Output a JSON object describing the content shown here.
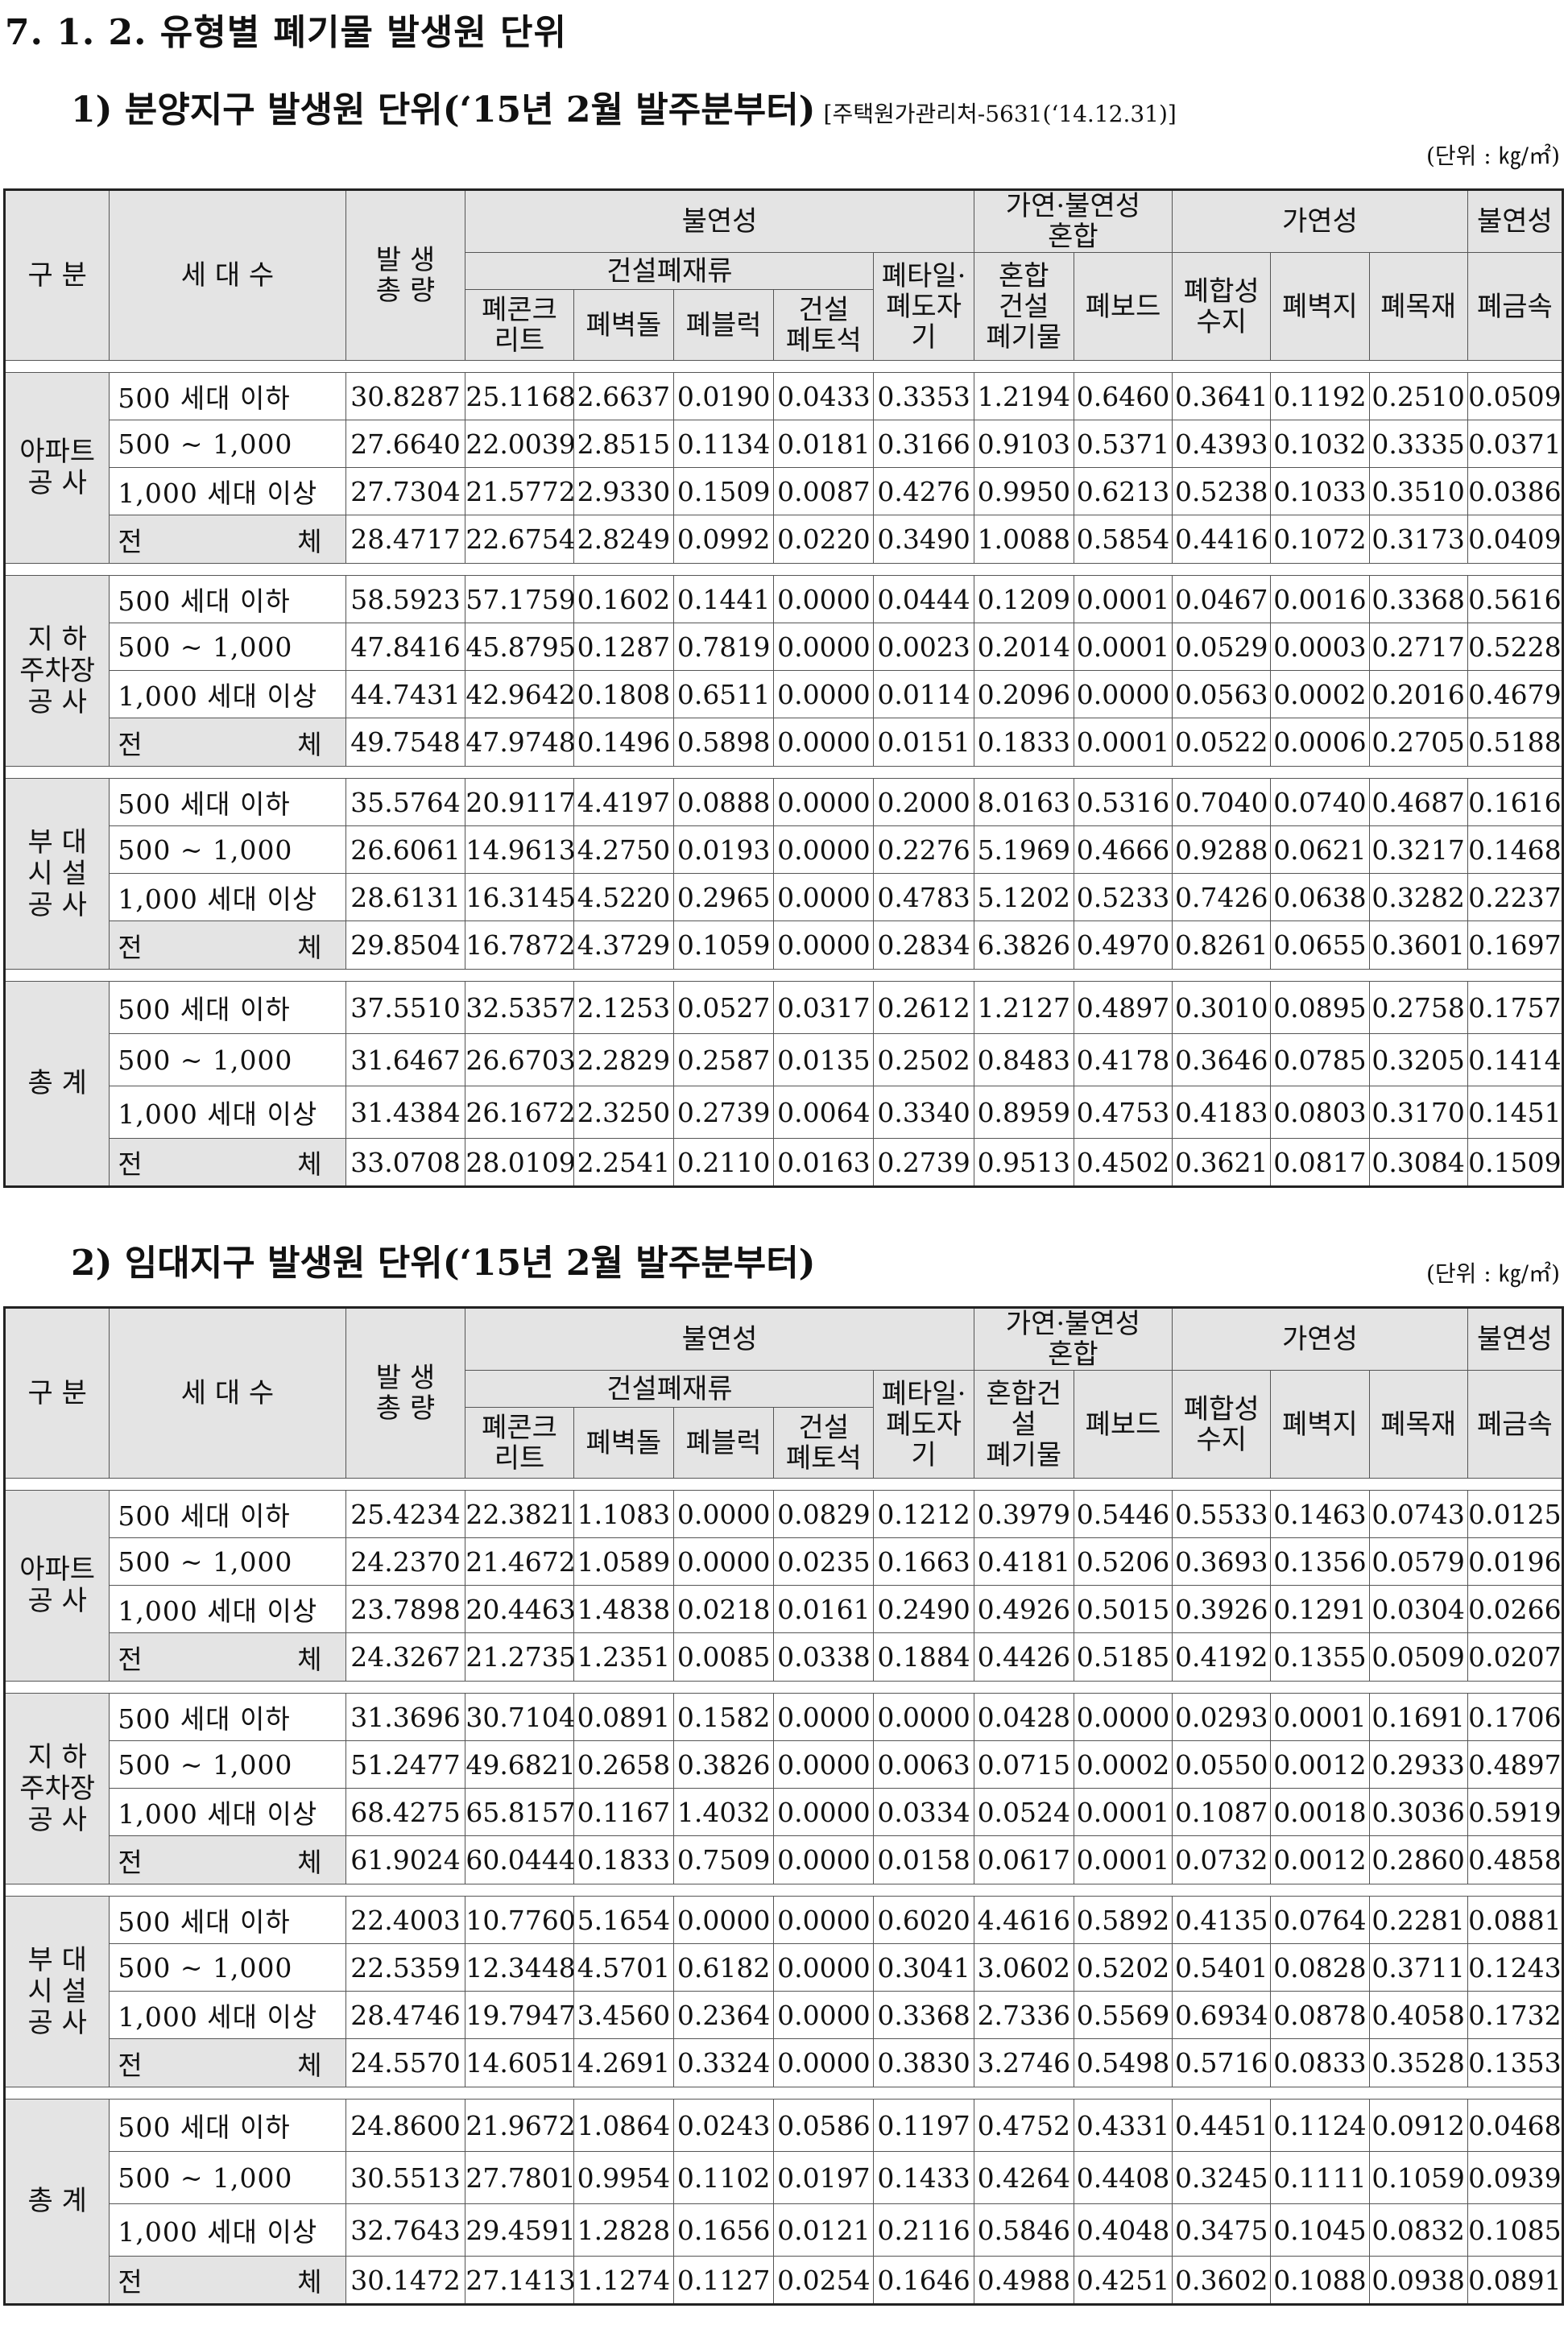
{
  "page_title": "7. 1. 2. 유형별 폐기물 발생원 단위",
  "headers": {
    "gubun": "구 분",
    "households": "세 대 수",
    "total": "발 생\n총 량",
    "nonflam": "불연성",
    "mixed": "가연·불연성\n혼합",
    "flam": "가연성",
    "nonflam2": "불연성",
    "constr": "건설폐재류",
    "tile": "폐타일·\n폐도자\n기",
    "concrete": "폐콘크\n리트",
    "brick": "폐벽돌",
    "block": "폐블럭",
    "stone": "건설\n폐토석",
    "board": "폐보드",
    "resin": "폐합성\n수지",
    "wallpaper": "폐벽지",
    "wood": "폐목재",
    "metal": "폐금속"
  },
  "sections": [
    {
      "title": "1) 분양지구 발생원 단위(‘15년 2월 발주분부터)",
      "ref": "[주택원가관리처-5631(‘14.12.31)]",
      "unit": "(단위 : ㎏/㎡)",
      "mixed_col_header": "혼합\n건설\n폐기물",
      "groups": [
        {
          "name": "아파트\n공 사",
          "rows": [
            {
              "hh": "500 세대 이하",
              "v": [
                "30.8287",
                "25.1168",
                "2.6637",
                "0.0190",
                "0.0433",
                "0.3353",
                "1.2194",
                "0.6460",
                "0.3641",
                "0.1192",
                "0.2510",
                "0.0509"
              ]
            },
            {
              "hh": "500 ~ 1,000",
              "v": [
                "27.6640",
                "22.0039",
                "2.8515",
                "0.1134",
                "0.0181",
                "0.3166",
                "0.9103",
                "0.5371",
                "0.4393",
                "0.1032",
                "0.3335",
                "0.0371"
              ]
            },
            {
              "hh": "1,000 세대 이상",
              "v": [
                "27.7304",
                "21.5772",
                "2.9330",
                "0.1509",
                "0.0087",
                "0.4276",
                "0.9950",
                "0.6213",
                "0.5238",
                "0.1033",
                "0.3510",
                "0.0386"
              ]
            },
            {
              "hh": "전 체",
              "total": true,
              "v": [
                "28.4717",
                "22.6754",
                "2.8249",
                "0.0992",
                "0.0220",
                "0.3490",
                "1.0088",
                "0.5854",
                "0.4416",
                "0.1072",
                "0.3173",
                "0.0409"
              ]
            }
          ]
        },
        {
          "name": "지 하\n주차장\n공 사",
          "rows": [
            {
              "hh": "500 세대 이하",
              "v": [
                "58.5923",
                "57.1759",
                "0.1602",
                "0.1441",
                "0.0000",
                "0.0444",
                "0.1209",
                "0.0001",
                "0.0467",
                "0.0016",
                "0.3368",
                "0.5616"
              ]
            },
            {
              "hh": "500 ~ 1,000",
              "v": [
                "47.8416",
                "45.8795",
                "0.1287",
                "0.7819",
                "0.0000",
                "0.0023",
                "0.2014",
                "0.0001",
                "0.0529",
                "0.0003",
                "0.2717",
                "0.5228"
              ]
            },
            {
              "hh": "1,000 세대 이상",
              "v": [
                "44.7431",
                "42.9642",
                "0.1808",
                "0.6511",
                "0.0000",
                "0.0114",
                "0.2096",
                "0.0000",
                "0.0563",
                "0.0002",
                "0.2016",
                "0.4679"
              ]
            },
            {
              "hh": "전 체",
              "total": true,
              "v": [
                "49.7548",
                "47.9748",
                "0.1496",
                "0.5898",
                "0.0000",
                "0.0151",
                "0.1833",
                "0.0001",
                "0.0522",
                "0.0006",
                "0.2705",
                "0.5188"
              ]
            }
          ]
        },
        {
          "name": "부 대\n시 설\n공 사",
          "rows": [
            {
              "hh": "500 세대 이하",
              "v": [
                "35.5764",
                "20.9117",
                "4.4197",
                "0.0888",
                "0.0000",
                "0.2000",
                "8.0163",
                "0.5316",
                "0.7040",
                "0.0740",
                "0.4687",
                "0.1616"
              ]
            },
            {
              "hh": "500 ~ 1,000",
              "v": [
                "26.6061",
                "14.9613",
                "4.2750",
                "0.0193",
                "0.0000",
                "0.2276",
                "5.1969",
                "0.4666",
                "0.9288",
                "0.0621",
                "0.3217",
                "0.1468"
              ]
            },
            {
              "hh": "1,000 세대 이상",
              "v": [
                "28.6131",
                "16.3145",
                "4.5220",
                "0.2965",
                "0.0000",
                "0.4783",
                "5.1202",
                "0.5233",
                "0.7426",
                "0.0638",
                "0.3282",
                "0.2237"
              ]
            },
            {
              "hh": "전 체",
              "total": true,
              "v": [
                "29.8504",
                "16.7872",
                "4.3729",
                "0.1059",
                "0.0000",
                "0.2834",
                "6.3826",
                "0.4970",
                "0.8261",
                "0.0655",
                "0.3601",
                "0.1697"
              ]
            }
          ]
        },
        {
          "name": "총 계",
          "rows": [
            {
              "hh": "500 세대 이하",
              "v": [
                "37.5510",
                "32.5357",
                "2.1253",
                "0.0527",
                "0.0317",
                "0.2612",
                "1.2127",
                "0.4897",
                "0.3010",
                "0.0895",
                "0.2758",
                "0.1757"
              ]
            },
            {
              "hh": "500 ~ 1,000",
              "v": [
                "31.6467",
                "26.6703",
                "2.2829",
                "0.2587",
                "0.0135",
                "0.2502",
                "0.8483",
                "0.4178",
                "0.3646",
                "0.0785",
                "0.3205",
                "0.1414"
              ]
            },
            {
              "hh": "1,000 세대 이상",
              "v": [
                "31.4384",
                "26.1672",
                "2.3250",
                "0.2739",
                "0.0064",
                "0.3340",
                "0.8959",
                "0.4753",
                "0.4183",
                "0.0803",
                "0.3170",
                "0.1451"
              ]
            },
            {
              "hh": "전 체",
              "total": true,
              "v": [
                "33.0708",
                "28.0109",
                "2.2541",
                "0.2110",
                "0.0163",
                "0.2739",
                "0.9513",
                "0.4502",
                "0.3621",
                "0.0817",
                "0.3084",
                "0.1509"
              ]
            }
          ]
        }
      ]
    },
    {
      "title": "2) 임대지구 발생원 단위(‘15년 2월 발주분부터)",
      "ref": "",
      "unit": "(단위 : ㎏/㎡)",
      "mixed_col_header": "혼합건\n설\n폐기물",
      "groups": [
        {
          "name": "아파트\n공 사",
          "rows": [
            {
              "hh": "500 세대 이하",
              "v": [
                "25.4234",
                "22.3821",
                "1.1083",
                "0.0000",
                "0.0829",
                "0.1212",
                "0.3979",
                "0.5446",
                "0.5533",
                "0.1463",
                "0.0743",
                "0.0125"
              ]
            },
            {
              "hh": "500 ~ 1,000",
              "v": [
                "24.2370",
                "21.4672",
                "1.0589",
                "0.0000",
                "0.0235",
                "0.1663",
                "0.4181",
                "0.5206",
                "0.3693",
                "0.1356",
                "0.0579",
                "0.0196"
              ]
            },
            {
              "hh": "1,000 세대 이상",
              "v": [
                "23.7898",
                "20.4463",
                "1.4838",
                "0.0218",
                "0.0161",
                "0.2490",
                "0.4926",
                "0.5015",
                "0.3926",
                "0.1291",
                "0.0304",
                "0.0266"
              ]
            },
            {
              "hh": "전 체",
              "total": true,
              "v": [
                "24.3267",
                "21.2735",
                "1.2351",
                "0.0085",
                "0.0338",
                "0.1884",
                "0.4426",
                "0.5185",
                "0.4192",
                "0.1355",
                "0.0509",
                "0.0207"
              ]
            }
          ]
        },
        {
          "name": "지 하\n주차장\n공 사",
          "rows": [
            {
              "hh": "500 세대 이하",
              "v": [
                "31.3696",
                "30.7104",
                "0.0891",
                "0.1582",
                "0.0000",
                "0.0000",
                "0.0428",
                "0.0000",
                "0.0293",
                "0.0001",
                "0.1691",
                "0.1706"
              ]
            },
            {
              "hh": "500 ~ 1,000",
              "v": [
                "51.2477",
                "49.6821",
                "0.2658",
                "0.3826",
                "0.0000",
                "0.0063",
                "0.0715",
                "0.0002",
                "0.0550",
                "0.0012",
                "0.2933",
                "0.4897"
              ]
            },
            {
              "hh": "1,000 세대 이상",
              "v": [
                "68.4275",
                "65.8157",
                "0.1167",
                "1.4032",
                "0.0000",
                "0.0334",
                "0.0524",
                "0.0001",
                "0.1087",
                "0.0018",
                "0.3036",
                "0.5919"
              ]
            },
            {
              "hh": "전 체",
              "total": true,
              "v": [
                "61.9024",
                "60.0444",
                "0.1833",
                "0.7509",
                "0.0000",
                "0.0158",
                "0.0617",
                "0.0001",
                "0.0732",
                "0.0012",
                "0.2860",
                "0.4858"
              ]
            }
          ]
        },
        {
          "name": "부 대\n시 설\n공 사",
          "rows": [
            {
              "hh": "500 세대 이하",
              "v": [
                "22.4003",
                "10.7760",
                "5.1654",
                "0.0000",
                "0.0000",
                "0.6020",
                "4.4616",
                "0.5892",
                "0.4135",
                "0.0764",
                "0.2281",
                "0.0881"
              ]
            },
            {
              "hh": "500 ~ 1,000",
              "v": [
                "22.5359",
                "12.3448",
                "4.5701",
                "0.6182",
                "0.0000",
                "0.3041",
                "3.0602",
                "0.5202",
                "0.5401",
                "0.0828",
                "0.3711",
                "0.1243"
              ]
            },
            {
              "hh": "1,000 세대 이상",
              "v": [
                "28.4746",
                "19.7947",
                "3.4560",
                "0.2364",
                "0.0000",
                "0.3368",
                "2.7336",
                "0.5569",
                "0.6934",
                "0.0878",
                "0.4058",
                "0.1732"
              ]
            },
            {
              "hh": "전 체",
              "total": true,
              "v": [
                "24.5570",
                "14.6051",
                "4.2691",
                "0.3324",
                "0.0000",
                "0.3830",
                "3.2746",
                "0.5498",
                "0.5716",
                "0.0833",
                "0.3528",
                "0.1353"
              ]
            }
          ]
        },
        {
          "name": "총 계",
          "rows": [
            {
              "hh": "500 세대 이하",
              "v": [
                "24.8600",
                "21.9672",
                "1.0864",
                "0.0243",
                "0.0586",
                "0.1197",
                "0.4752",
                "0.4331",
                "0.4451",
                "0.1124",
                "0.0912",
                "0.0468"
              ]
            },
            {
              "hh": "500 ~ 1,000",
              "v": [
                "30.5513",
                "27.7801",
                "0.9954",
                "0.1102",
                "0.0197",
                "0.1433",
                "0.4264",
                "0.4408",
                "0.3245",
                "0.1111",
                "0.1059",
                "0.0939"
              ]
            },
            {
              "hh": "1,000 세대 이상",
              "v": [
                "32.7643",
                "29.4591",
                "1.2828",
                "0.1656",
                "0.0121",
                "0.2116",
                "0.5846",
                "0.4048",
                "0.3475",
                "0.1045",
                "0.0832",
                "0.1085"
              ]
            },
            {
              "hh": "전 체",
              "total": true,
              "v": [
                "30.1472",
                "27.1413",
                "1.1274",
                "0.1127",
                "0.0254",
                "0.1646",
                "0.4988",
                "0.4251",
                "0.3602",
                "0.1088",
                "0.0938",
                "0.0891"
              ]
            }
          ]
        }
      ]
    }
  ]
}
